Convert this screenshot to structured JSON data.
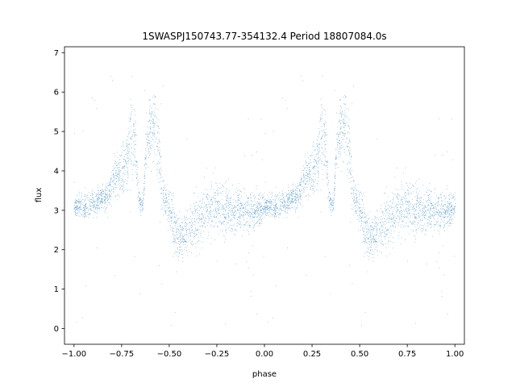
{
  "chart_data": {
    "type": "scatter",
    "title": "1SWASPJ150743.77-354132.4 Period 18807084.0s",
    "xlabel": "phase",
    "ylabel": "flux",
    "xlim": [
      -1.05,
      1.05
    ],
    "ylim": [
      -0.4,
      7.15
    ],
    "xticks": [
      -1.0,
      -0.75,
      -0.5,
      -0.25,
      0.0,
      0.25,
      0.5,
      0.75,
      1.0
    ],
    "xtick_labels": [
      "−1.00",
      "−0.75",
      "−0.50",
      "−0.25",
      "0.00",
      "0.25",
      "0.50",
      "0.75",
      "1.00"
    ],
    "yticks": [
      0,
      1,
      2,
      3,
      4,
      5,
      6,
      7
    ],
    "ytick_labels": [
      "0",
      "1",
      "2",
      "3",
      "4",
      "5",
      "6",
      "7"
    ],
    "grid": false,
    "marker_color": "#1f77b4",
    "series": [
      {
        "description": "folded light curve (phase 0..1 repeated for phase -1..0)",
        "phase": [
          0.0,
          0.02,
          0.04,
          0.06,
          0.08,
          0.1,
          0.12,
          0.14,
          0.16,
          0.18,
          0.2,
          0.22,
          0.24,
          0.26,
          0.28,
          0.3,
          0.32,
          0.34,
          0.36,
          0.38,
          0.4,
          0.42,
          0.44,
          0.46,
          0.48,
          0.5,
          0.52,
          0.54,
          0.56,
          0.58,
          0.6,
          0.62,
          0.64,
          0.66,
          0.68,
          0.7,
          0.72,
          0.74,
          0.76,
          0.78,
          0.8,
          0.82,
          0.84,
          0.86,
          0.88,
          0.9,
          0.92,
          0.94,
          0.96,
          0.98,
          1.0
        ],
        "flux_center": [
          3.1,
          3.1,
          3.1,
          3.1,
          3.1,
          3.2,
          3.2,
          3.3,
          3.3,
          3.4,
          3.7,
          3.9,
          3.9,
          4.1,
          4.3,
          4.8,
          4.7,
          3.2,
          3.1,
          4.8,
          5.1,
          5.2,
          4.8,
          3.5,
          3.2,
          3.0,
          2.6,
          2.4,
          2.3,
          2.4,
          2.5,
          2.6,
          2.7,
          2.8,
          2.9,
          3.0,
          3.0,
          3.1,
          3.0,
          3.0,
          3.0,
          3.0,
          3.0,
          3.0,
          3.0,
          3.0,
          3.0,
          3.0,
          3.0,
          3.0,
          3.1
        ],
        "flux_spread": [
          0.25,
          0.25,
          0.3,
          0.3,
          0.3,
          0.3,
          0.3,
          0.3,
          0.3,
          0.3,
          0.45,
          0.5,
          0.5,
          0.6,
          0.7,
          0.9,
          0.9,
          0.2,
          0.2,
          0.7,
          0.8,
          0.8,
          0.9,
          0.5,
          0.4,
          0.5,
          0.6,
          0.6,
          0.5,
          0.5,
          0.5,
          0.5,
          0.6,
          0.6,
          0.6,
          0.6,
          0.6,
          0.6,
          0.6,
          0.6,
          0.55,
          0.55,
          0.55,
          0.5,
          0.5,
          0.5,
          0.5,
          0.45,
          0.4,
          0.35,
          0.3
        ]
      }
    ]
  }
}
